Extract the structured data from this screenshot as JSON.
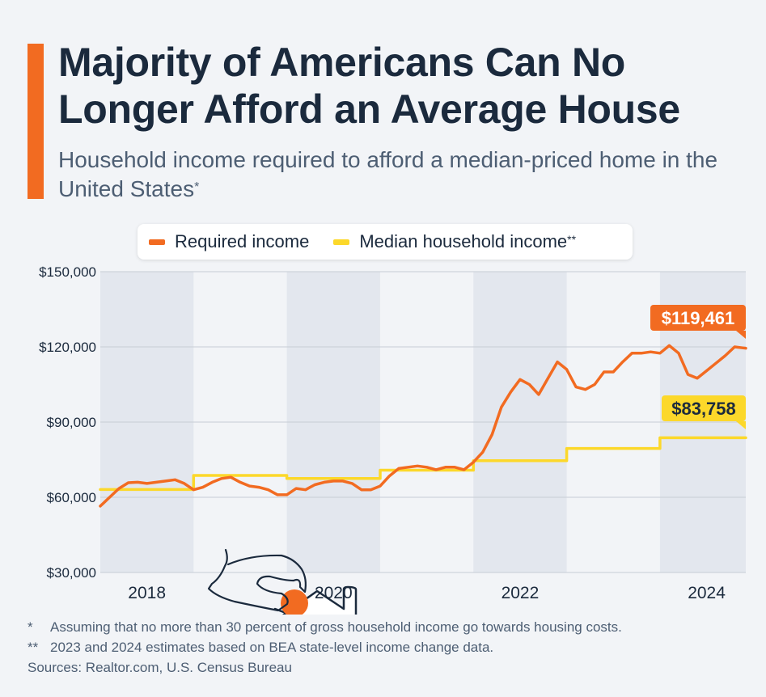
{
  "header": {
    "title": "Majority of Americans Can No Longer Afford an Average House",
    "subtitle": "Household income required to afford a median-priced home in the United States",
    "subtitle_mark": "*"
  },
  "legend": {
    "items": [
      {
        "label": "Required income",
        "mark": "",
        "color": "#f26b21"
      },
      {
        "label": "Median household income",
        "mark": "**",
        "color": "#fcd82a"
      }
    ]
  },
  "footnotes": {
    "note1_mark": "*",
    "note1": "Assuming that no more than 30 percent of gross household income go towards housing costs.",
    "note2_mark": "**",
    "note2": "2023 and 2024 estimates based on BEA state-level income change data.",
    "sources": "Sources: Realtor.com, U.S. Census Bureau"
  },
  "illustration": {
    "icon": "hand-coin-house-icon"
  },
  "chart_data": {
    "type": "line",
    "title": "Majority of Americans Can No Longer Afford an Average House",
    "xlabel": "",
    "ylabel": "",
    "ylim": [
      30000,
      150000
    ],
    "xlim": [
      2017.5,
      2024.42
    ],
    "y_ticks": [
      30000,
      60000,
      90000,
      120000,
      150000
    ],
    "y_tick_labels": [
      "$30,000",
      "$60,000",
      "$90,000",
      "$120,000",
      "$150,000"
    ],
    "x_ticks": [
      2018,
      2020,
      2022,
      2024
    ],
    "x_tick_labels": [
      "2018",
      "2020",
      "2022",
      "2024"
    ],
    "shaded_years": [
      [
        2017.5,
        2018.5
      ],
      [
        2019.5,
        2020.5
      ],
      [
        2021.5,
        2022.5
      ],
      [
        2023.5,
        2024.42
      ]
    ],
    "series": [
      {
        "name": "Required income",
        "color": "#f26b21",
        "end_label": "$119,461",
        "x": [
          2017.5,
          2017.6,
          2017.7,
          2017.8,
          2017.9,
          2018.0,
          2018.1,
          2018.2,
          2018.3,
          2018.4,
          2018.5,
          2018.6,
          2018.7,
          2018.8,
          2018.9,
          2019.0,
          2019.1,
          2019.2,
          2019.3,
          2019.4,
          2019.5,
          2019.6,
          2019.7,
          2019.8,
          2019.9,
          2020.0,
          2020.1,
          2020.2,
          2020.3,
          2020.4,
          2020.5,
          2020.6,
          2020.7,
          2020.8,
          2020.9,
          2021.0,
          2021.1,
          2021.2,
          2021.3,
          2021.4,
          2021.5,
          2021.6,
          2021.7,
          2021.8,
          2021.9,
          2022.0,
          2022.1,
          2022.2,
          2022.3,
          2022.4,
          2022.5,
          2022.6,
          2022.7,
          2022.8,
          2022.9,
          2023.0,
          2023.1,
          2023.2,
          2023.3,
          2023.4,
          2023.5,
          2023.6,
          2023.7,
          2023.8,
          2023.9,
          2024.0,
          2024.1,
          2024.2,
          2024.3,
          2024.42
        ],
        "values": [
          56500,
          60000,
          63500,
          65800,
          66000,
          65500,
          66000,
          66500,
          67000,
          65500,
          63000,
          64000,
          66000,
          67500,
          68000,
          66000,
          64500,
          64000,
          63000,
          61000,
          61000,
          63500,
          63000,
          65000,
          66000,
          66500,
          66500,
          65500,
          63000,
          63000,
          64500,
          68500,
          71500,
          72000,
          72500,
          72000,
          71000,
          72000,
          72000,
          71000,
          74000,
          78000,
          85000,
          96000,
          102000,
          107000,
          105000,
          101000,
          107500,
          114000,
          111000,
          104000,
          103000,
          105000,
          110000,
          110000,
          114000,
          117500,
          117500,
          118000,
          117500,
          120500,
          117500,
          109000,
          107500,
          110500,
          113500,
          116500,
          120000,
          119461
        ]
      },
      {
        "name": "Median household income",
        "color": "#fcd82a",
        "end_label": "$83,758",
        "x": [
          2017.5,
          2018.5,
          2018.5,
          2019.5,
          2019.5,
          2020.5,
          2020.5,
          2021.5,
          2021.5,
          2022.5,
          2022.5,
          2023.5,
          2023.5,
          2024.42
        ],
        "values": [
          63100,
          63100,
          68700,
          68700,
          67500,
          67500,
          70800,
          70800,
          74600,
          74600,
          79500,
          79500,
          83758,
          83758
        ]
      }
    ]
  }
}
